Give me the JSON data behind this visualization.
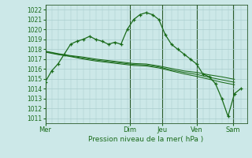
{
  "title": "Pression niveau de la mer( hPa )",
  "bg_color": "#cce8e8",
  "grid_color": "#aacece",
  "line_color": "#1a6b1a",
  "dark_line_color": "#2a5a2a",
  "ylim": [
    1010.5,
    1022.5
  ],
  "yticks": [
    1011,
    1012,
    1013,
    1014,
    1015,
    1016,
    1017,
    1018,
    1019,
    1020,
    1021,
    1022
  ],
  "day_labels": [
    "Mer",
    "Dim",
    "Jeu",
    "Ven",
    "Sam"
  ],
  "day_positions": [
    0.0,
    0.42,
    0.58,
    0.75,
    0.93
  ],
  "total_steps": 1.0,
  "lines": [
    {
      "x": [
        0.0,
        0.031,
        0.0625,
        0.094,
        0.125,
        0.156,
        0.188,
        0.219,
        0.25,
        0.281,
        0.313,
        0.344,
        0.375,
        0.406,
        0.438,
        0.469,
        0.5,
        0.531,
        0.563,
        0.594,
        0.625,
        0.656,
        0.688,
        0.719,
        0.75,
        0.781,
        0.813,
        0.844,
        0.875,
        0.906,
        0.938,
        0.969
      ],
      "y": [
        1014.7,
        1015.8,
        1016.5,
        1017.5,
        1018.5,
        1018.8,
        1019.0,
        1019.3,
        1019.0,
        1018.8,
        1018.5,
        1018.7,
        1018.5,
        1020.0,
        1021.0,
        1021.5,
        1021.7,
        1021.5,
        1021.0,
        1019.5,
        1018.5,
        1018.0,
        1017.5,
        1017.0,
        1016.5,
        1015.5,
        1015.2,
        1014.5,
        1013.0,
        1011.2,
        1013.5,
        1014.0
      ],
      "marker": true
    },
    {
      "x": [
        0.0,
        0.063,
        0.125,
        0.188,
        0.25,
        0.313,
        0.375,
        0.438,
        0.5,
        0.563,
        0.625,
        0.688,
        0.75,
        0.813,
        0.875,
        0.938
      ],
      "y": [
        1017.8,
        1017.55,
        1017.35,
        1017.2,
        1017.0,
        1016.85,
        1016.7,
        1016.55,
        1016.5,
        1016.3,
        1016.05,
        1015.8,
        1015.65,
        1015.4,
        1015.2,
        1014.95
      ],
      "marker": false
    },
    {
      "x": [
        0.0,
        0.063,
        0.125,
        0.188,
        0.25,
        0.313,
        0.375,
        0.438,
        0.5,
        0.563,
        0.625,
        0.688,
        0.75,
        0.813,
        0.875,
        0.938
      ],
      "y": [
        1017.75,
        1017.5,
        1017.3,
        1017.1,
        1016.9,
        1016.75,
        1016.6,
        1016.45,
        1016.4,
        1016.2,
        1015.9,
        1015.65,
        1015.45,
        1015.15,
        1014.9,
        1014.65
      ],
      "marker": false
    },
    {
      "x": [
        0.0,
        0.063,
        0.125,
        0.188,
        0.25,
        0.313,
        0.375,
        0.438,
        0.5,
        0.563,
        0.625,
        0.688,
        0.75,
        0.813,
        0.875,
        0.938
      ],
      "y": [
        1017.7,
        1017.45,
        1017.25,
        1017.0,
        1016.8,
        1016.65,
        1016.5,
        1016.35,
        1016.3,
        1016.1,
        1015.8,
        1015.5,
        1015.25,
        1014.95,
        1014.65,
        1014.4
      ],
      "marker": false
    }
  ]
}
